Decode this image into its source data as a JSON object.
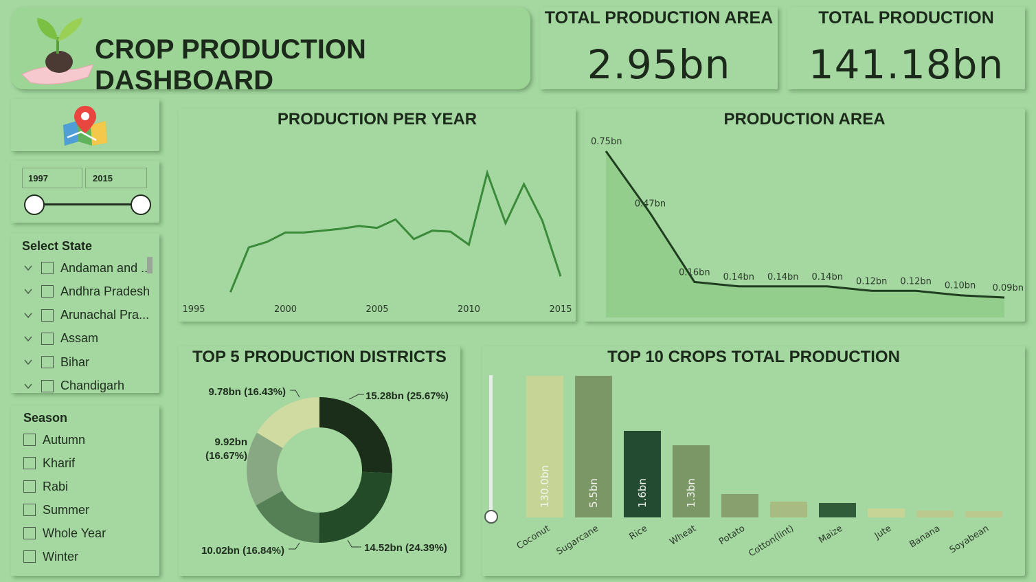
{
  "header": {
    "title": "CROP PRODUCTION DASHBOARD",
    "logo_icon": "seedling-hand-icon"
  },
  "kpis": [
    {
      "label": "TOTAL PRODUCTION AREA",
      "value": "2.95bn"
    },
    {
      "label": "TOTAL PRODUCTION",
      "value": "141.18bn"
    }
  ],
  "map_icon": "map-pin-icon",
  "year_filter": {
    "start": "1997",
    "end": "2015",
    "range_fraction": [
      0,
      1
    ]
  },
  "state_slicer": {
    "title": "Select State",
    "items": [
      "Andaman and ...",
      "Andhra Pradesh",
      "Arunachal Pra...",
      "Assam",
      "Bihar",
      "Chandigarh"
    ]
  },
  "season_slicer": {
    "title": "Season",
    "items": [
      "Autumn",
      "Kharif",
      "Rabi",
      "Summer",
      "Whole Year",
      "Winter"
    ]
  },
  "colors": {
    "background": "#a5d8a0",
    "line": "#3a8a3a",
    "area_fill": "#8fcd88",
    "area_line": "#1f3d1f",
    "donut": [
      "#1a2e1a",
      "#234b28",
      "#557f55",
      "#87a882",
      "#cfdba0"
    ],
    "bars": [
      "#c6d595",
      "#7b9766",
      "#224b31",
      "#7b9766",
      "#87a06e",
      "#a7bb82",
      "#305c3a",
      "#c6d595",
      "#bcc98e",
      "#bcc98e"
    ]
  },
  "chart_data": [
    {
      "type": "line",
      "title": "PRODUCTION PER YEAR",
      "x_ticks": [
        "1995",
        "2000",
        "2005",
        "2010",
        "2015"
      ],
      "x": [
        1997,
        1998,
        1999,
        2000,
        2001,
        2002,
        2003,
        2004,
        2005,
        2006,
        2007,
        2008,
        2009,
        2010,
        2011,
        2012,
        2013,
        2014,
        2015
      ],
      "values": [
        0.2,
        5.0,
        5.6,
        6.6,
        6.6,
        6.8,
        7.0,
        7.3,
        7.1,
        8.0,
        5.9,
        6.8,
        6.7,
        5.3,
        13.0,
        7.6,
        11.8,
        7.9,
        1.9
      ],
      "xlim": [
        1995,
        2015
      ]
    },
    {
      "type": "area",
      "title": "PRODUCTION AREA",
      "values": [
        0.75,
        0.47,
        0.16,
        0.14,
        0.14,
        0.14,
        0.12,
        0.12,
        0.1,
        0.09
      ],
      "labels": [
        "0.75bn",
        "0.47bn",
        "0.16bn",
        "0.14bn",
        "0.14bn",
        "0.14bn",
        "0.12bn",
        "0.12bn",
        "0.10bn",
        "0.09bn"
      ]
    },
    {
      "type": "pie",
      "title": "TOP 5 PRODUCTION DISTRICTS",
      "values": [
        15.28,
        14.52,
        10.02,
        9.92,
        9.78
      ],
      "labels": [
        "15.28bn (25.67%)",
        "14.52bn (24.39%)",
        "10.02bn (16.84%)",
        "9.92bn",
        "9.78bn (16.43%)"
      ],
      "label_extra": [
        "",
        "",
        "",
        "(16.67%)",
        ""
      ]
    },
    {
      "type": "bar",
      "title": "TOP 10 CROPS TOTAL PRODUCTION",
      "categories": [
        "Coconut",
        "Sugarcane",
        "Rice",
        "Wheat",
        "Potato",
        "Cotton(lint)",
        "Maize",
        "Jute",
        "Banana",
        "Soyabean"
      ],
      "values": [
        130.0,
        5.5,
        1.6,
        1.3,
        0.9,
        0.6,
        0.5,
        0.3,
        0.25,
        0.2
      ],
      "data_labels": [
        "130.0bn",
        "5.5bn",
        "1.6bn",
        "1.3bn",
        "",
        "",
        "",
        "",
        "",
        ""
      ]
    }
  ]
}
